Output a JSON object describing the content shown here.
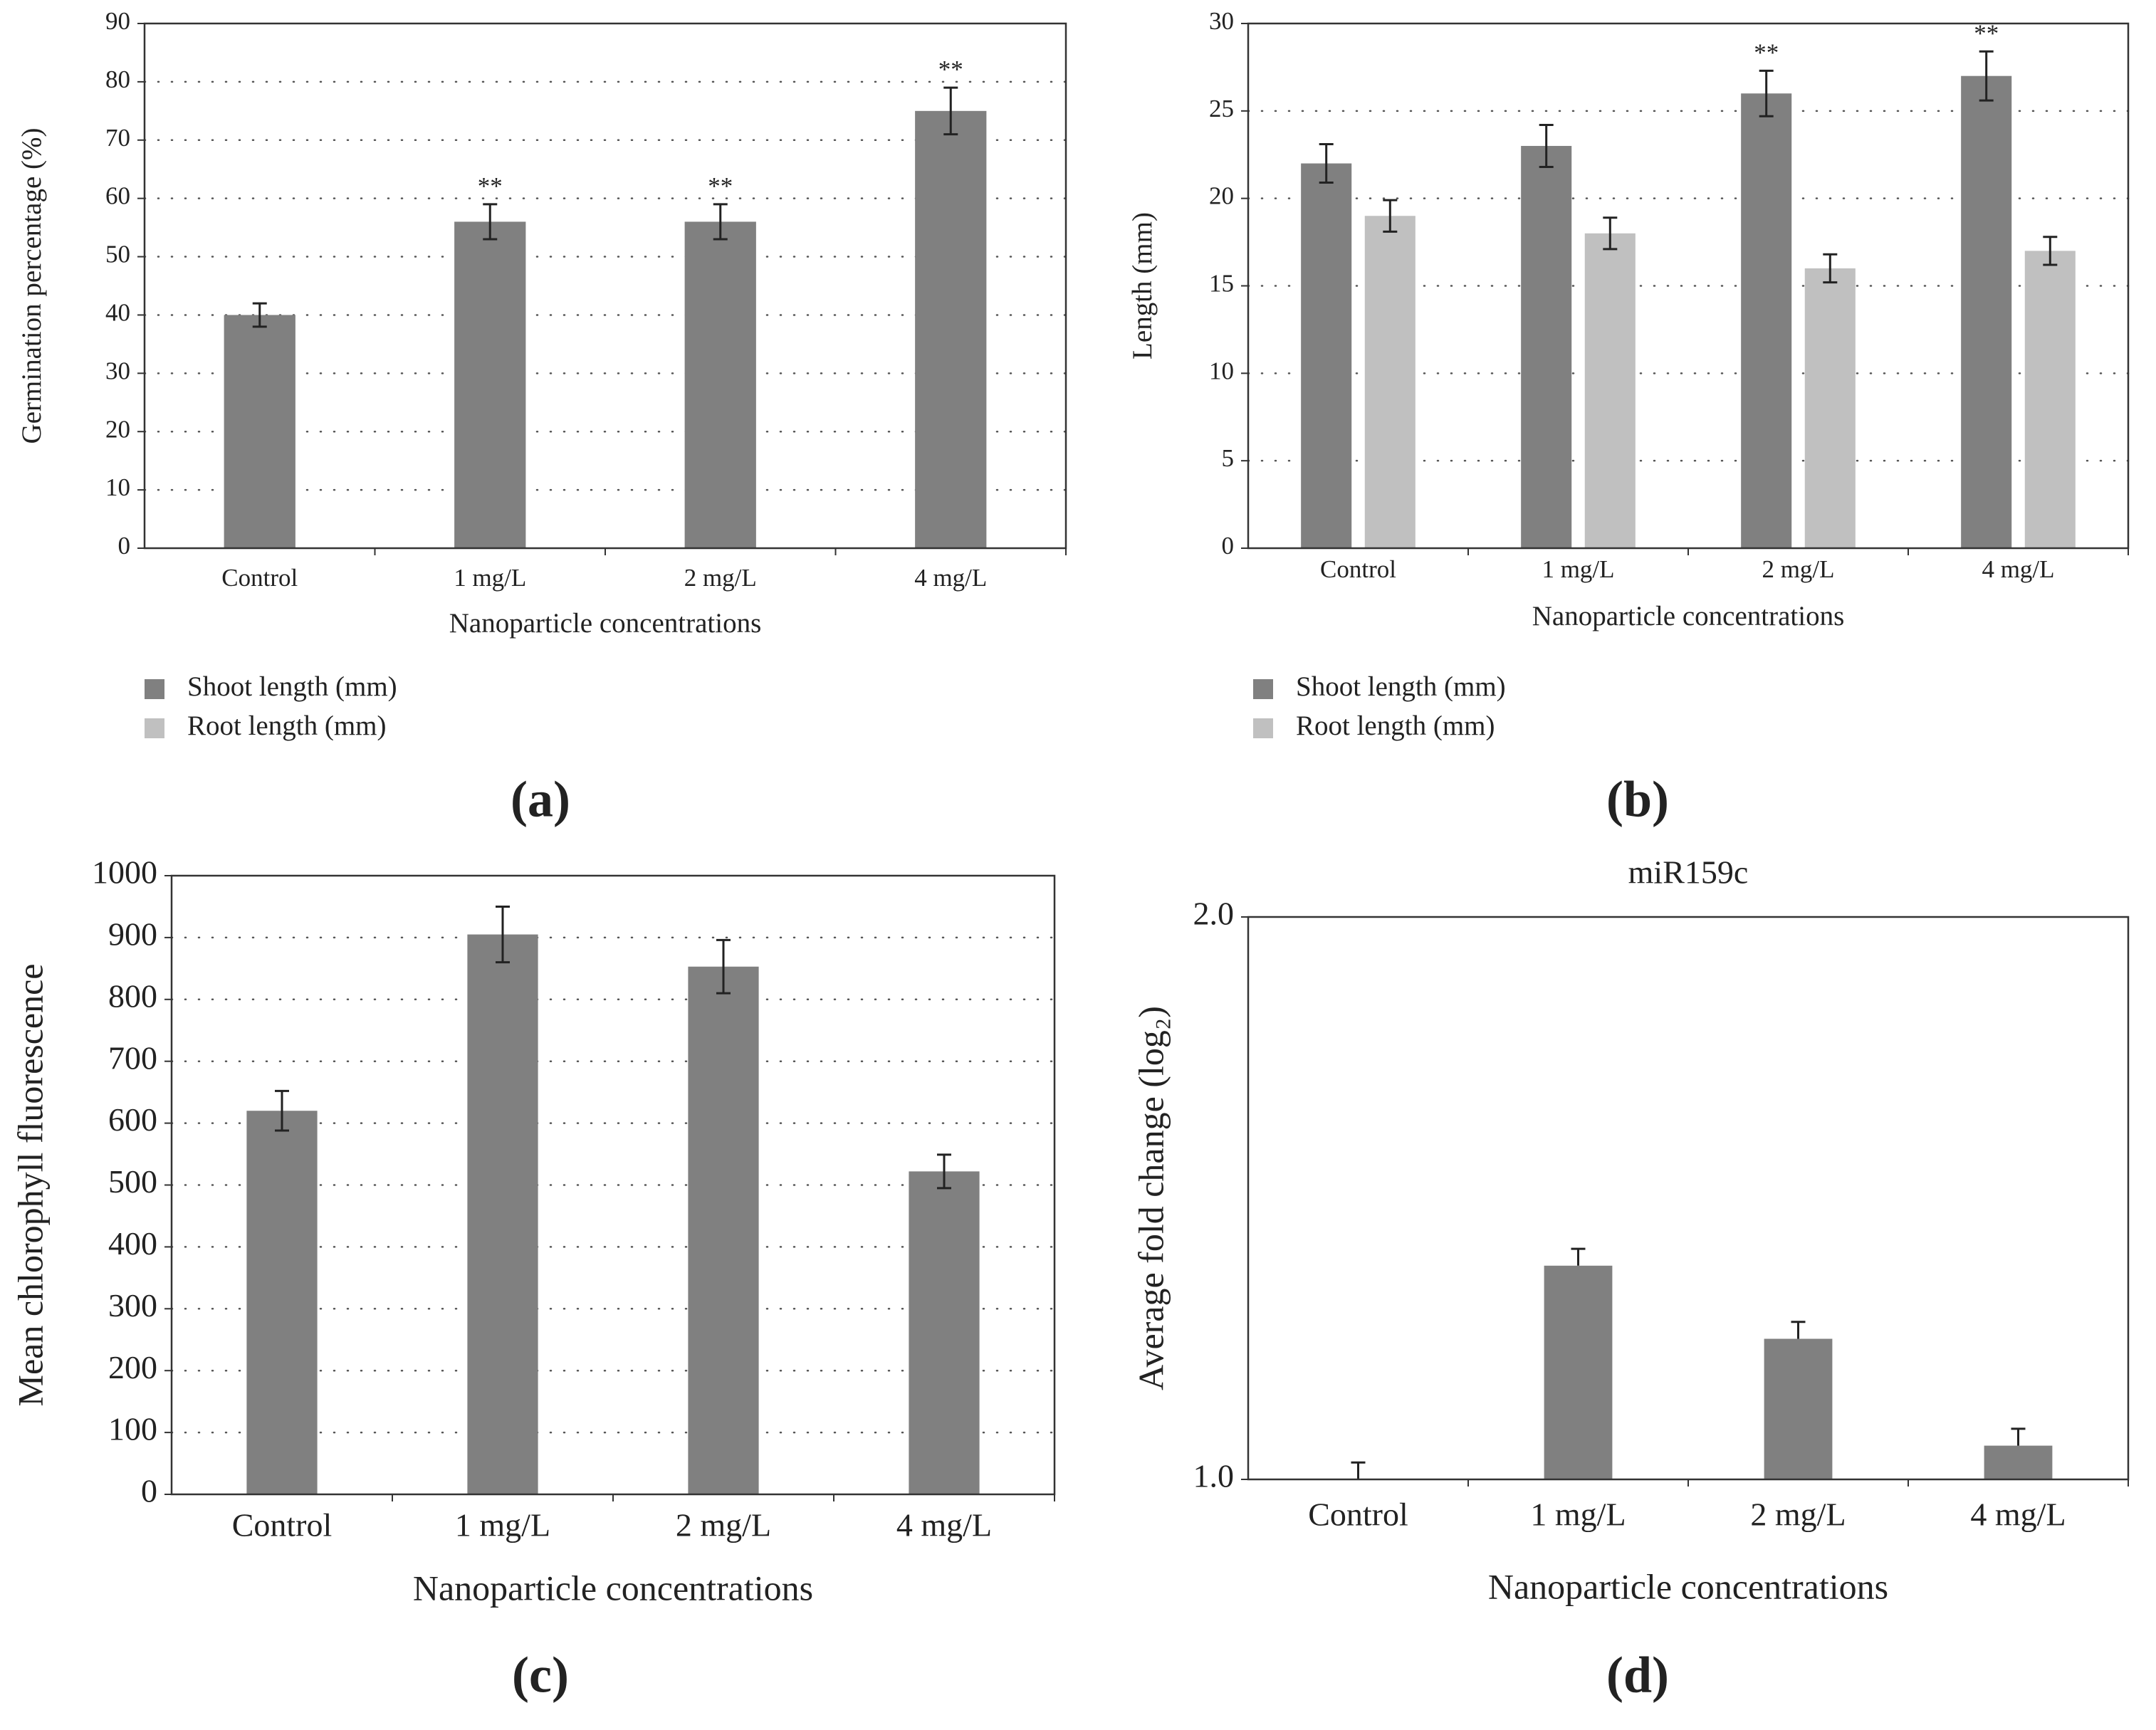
{
  "chart_data": [
    {
      "type": "bar",
      "panel": "(a)",
      "xlabel": "Nanoparticle concentrations",
      "ylabel": "Germination percentage (%)",
      "categories": [
        "Control",
        "1 mg/L",
        "2 mg/L",
        "4 mg/L"
      ],
      "series": [
        {
          "name": "Shoot length (mm)",
          "color": "#808080",
          "values": [
            40,
            56,
            56,
            75
          ],
          "errors": [
            2,
            3,
            3,
            4
          ],
          "significance": [
            null,
            "**",
            "**",
            "**"
          ]
        },
        {
          "name": "Root length (mm)",
          "color": "#c0c0c0",
          "values": [
            null,
            null,
            null,
            null
          ]
        }
      ],
      "ylim": [
        0,
        90
      ],
      "yticks": [
        0,
        10,
        20,
        30,
        40,
        50,
        60,
        70,
        80,
        90
      ],
      "grid": true,
      "error_bars": "both"
    },
    {
      "type": "bar",
      "panel": "(b)",
      "xlabel": "Nanoparticle concentrations",
      "ylabel": "Length (mm)",
      "categories": [
        "Control",
        "1 mg/L",
        "2 mg/L",
        "4 mg/L"
      ],
      "series": [
        {
          "name": "Shoot length (mm)",
          "color": "#808080",
          "values": [
            22,
            23,
            26,
            27
          ],
          "errors": [
            1.1,
            1.2,
            1.3,
            1.4
          ],
          "significance": [
            null,
            null,
            "**",
            "**"
          ]
        },
        {
          "name": "Root length (mm)",
          "color": "#c0c0c0",
          "values": [
            19,
            18,
            16,
            17
          ],
          "errors": [
            0.9,
            0.9,
            0.8,
            0.8
          ]
        }
      ],
      "ylim": [
        0,
        30
      ],
      "yticks": [
        0,
        5,
        10,
        15,
        20,
        25,
        30
      ],
      "grid": true,
      "error_bars": "both"
    },
    {
      "type": "bar",
      "panel": "(c)",
      "xlabel": "Nanoparticle concentrations",
      "ylabel": "Mean chlorophyll fluorescence",
      "categories": [
        "Control",
        "1 mg/L",
        "2 mg/L",
        "4 mg/L"
      ],
      "series": [
        {
          "color": "#808080",
          "values": [
            620,
            905,
            853,
            522
          ],
          "errors": [
            32,
            45,
            43,
            27
          ]
        }
      ],
      "ylim": [
        0,
        1000
      ],
      "yticks": [
        0,
        100,
        200,
        300,
        400,
        500,
        600,
        700,
        800,
        900,
        1000
      ],
      "grid": true,
      "error_bars": "both"
    },
    {
      "type": "bar",
      "panel": "(d)",
      "title": "miR159c",
      "xlabel": "Nanoparticle concentrations",
      "ylabel": "Average fold change (log₂)",
      "categories": [
        "Control",
        "1 mg/L",
        "2 mg/L",
        "4 mg/L"
      ],
      "series": [
        {
          "color": "#808080",
          "values": [
            1.0,
            1.38,
            1.25,
            1.06
          ],
          "errors": [
            0.03,
            0.03,
            0.03,
            0.03
          ]
        }
      ],
      "ylim": [
        1.0,
        2.0
      ],
      "yticks": [
        {
          "value": 1.0,
          "label": "1.0"
        },
        {
          "value": 2.0,
          "label": "2.0"
        }
      ],
      "grid": false,
      "error_bars": "up"
    }
  ]
}
